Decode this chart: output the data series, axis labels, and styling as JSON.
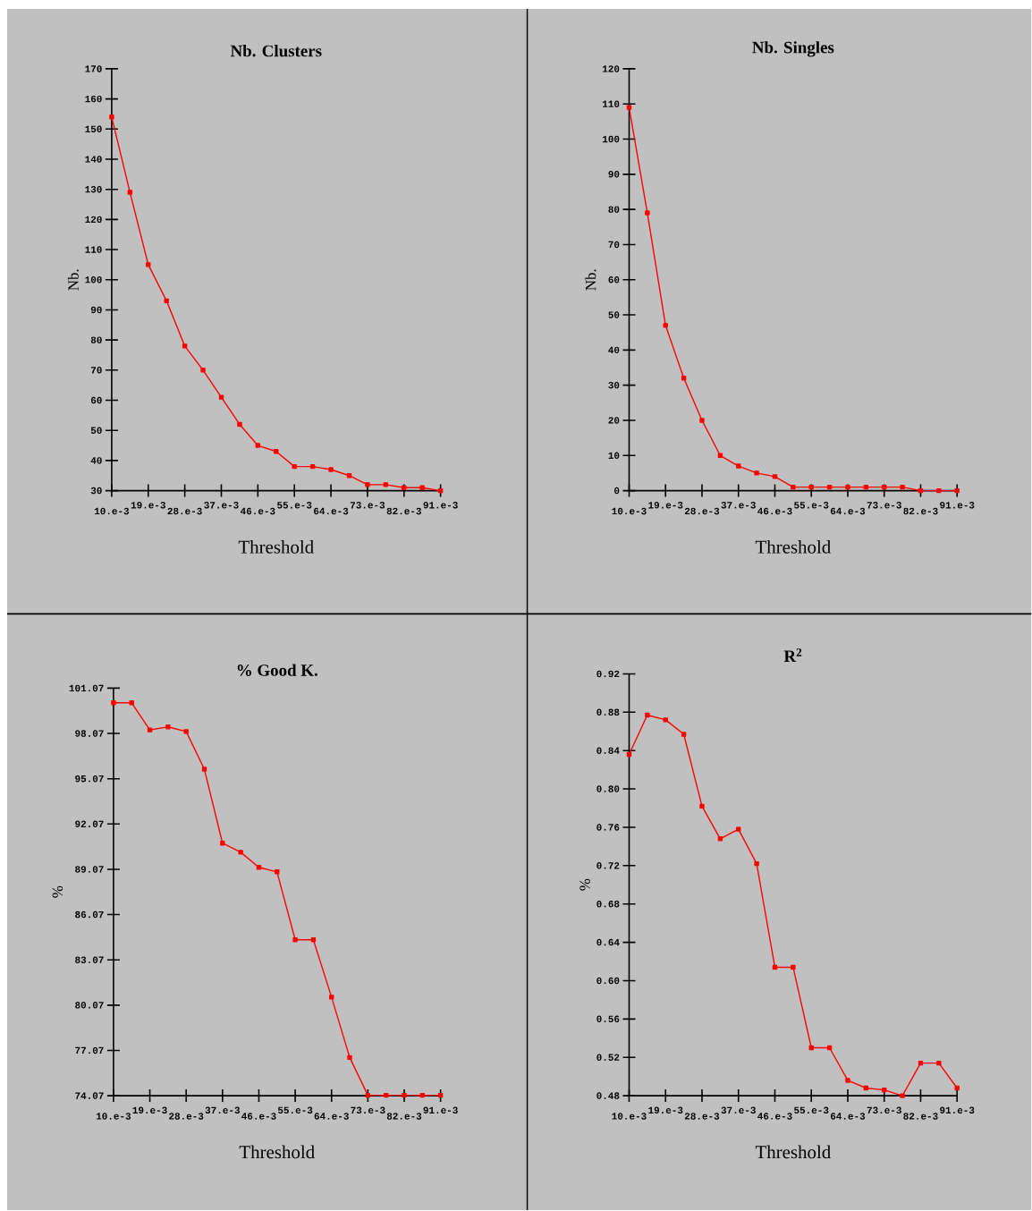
{
  "chart_data": [
    {
      "type": "line",
      "title": "Nb. Clusters",
      "xlabel": "Threshold",
      "ylabel": "Nb.",
      "color": "#ff0000",
      "marker": "square",
      "line_style": "solid",
      "categories": [
        "10.e-3",
        null,
        "19.e-3",
        null,
        "28.e-3",
        null,
        "37.e-3",
        null,
        "46.e-3",
        null,
        "55.e-3",
        null,
        "64.e-3",
        null,
        "73.e-3",
        null,
        "82.e-3",
        null,
        "91.e-3"
      ],
      "values": [
        154,
        129,
        105,
        93,
        78,
        70,
        61,
        52,
        45,
        43,
        38,
        38,
        37,
        35,
        32,
        32,
        31,
        31,
        30
      ],
      "ylim": [
        30,
        170
      ],
      "yticks": [
        30,
        40,
        50,
        60,
        70,
        80,
        90,
        100,
        110,
        120,
        130,
        140,
        150,
        160,
        170
      ]
    },
    {
      "type": "line",
      "title": "Nb. Singles",
      "xlabel": "Threshold",
      "ylabel": "Nb.",
      "color": "#ff0000",
      "marker": "square",
      "line_style": "solid",
      "categories": [
        "10.e-3",
        null,
        "19.e-3",
        null,
        "28.e-3",
        null,
        "37.e-3",
        null,
        "46.e-3",
        null,
        "55.e-3",
        null,
        "64.e-3",
        null,
        "73.e-3",
        null,
        "82.e-3",
        null,
        "91.e-3"
      ],
      "values": [
        109,
        79,
        47,
        32,
        20,
        10,
        7,
        5,
        4,
        1,
        1,
        1,
        1,
        1,
        1,
        1,
        0,
        0,
        0
      ],
      "ylim": [
        0,
        120
      ],
      "yticks": [
        0,
        10,
        20,
        30,
        40,
        50,
        60,
        70,
        80,
        90,
        100,
        110,
        120
      ]
    },
    {
      "type": "line",
      "title": "% Good K.",
      "xlabel": "Threshold",
      "ylabel": "%",
      "color": "#ff0000",
      "marker": "square",
      "line_style": "solid",
      "categories": [
        "10.e-3",
        null,
        "19.e-3",
        null,
        "28.e-3",
        null,
        "37.e-3",
        null,
        "46.e-3",
        null,
        "55.e-3",
        null,
        "64.e-3",
        null,
        "73.e-3",
        null,
        "82.e-3",
        null,
        "91.e-3"
      ],
      "values": [
        100.1,
        100.1,
        98.3,
        98.5,
        98.2,
        95.7,
        90.8,
        90.2,
        89.2,
        88.9,
        84.4,
        84.4,
        80.6,
        76.6,
        74.1,
        74.1,
        74.1,
        74.1,
        74.1
      ],
      "ylim": [
        74.07,
        101.07
      ],
      "yticks": [
        74.07,
        77.07,
        80.07,
        83.07,
        86.07,
        89.07,
        92.07,
        95.07,
        98.07,
        101.07
      ]
    },
    {
      "type": "line",
      "title": "R$^{2}$",
      "xlabel": "Threshold",
      "ylabel": "%",
      "color": "#ff0000",
      "marker": "square",
      "line_style": "solid",
      "categories": [
        "10.e-3",
        null,
        "19.e-3",
        null,
        "28.e-3",
        null,
        "37.e-3",
        null,
        "46.e-3",
        null,
        "55.e-3",
        null,
        "64.e-3",
        null,
        "73.e-3",
        null,
        "82.e-3",
        null,
        "91.e-3"
      ],
      "values": [
        0.836,
        0.877,
        0.872,
        0.857,
        0.782,
        0.748,
        0.758,
        0.722,
        0.614,
        0.614,
        0.53,
        0.53,
        0.496,
        0.488,
        0.486,
        0.48,
        0.514,
        0.514,
        0.488
      ],
      "ylim": [
        0.48,
        0.92
      ],
      "yticks": [
        0.48,
        0.52,
        0.56,
        {
          "value": 0.6,
          "label": "0.60"
        },
        0.64,
        0.68,
        0.72,
        0.76,
        {
          "value": 0.8,
          "label": "0.80"
        },
        0.84,
        0.88,
        0.92
      ]
    }
  ]
}
